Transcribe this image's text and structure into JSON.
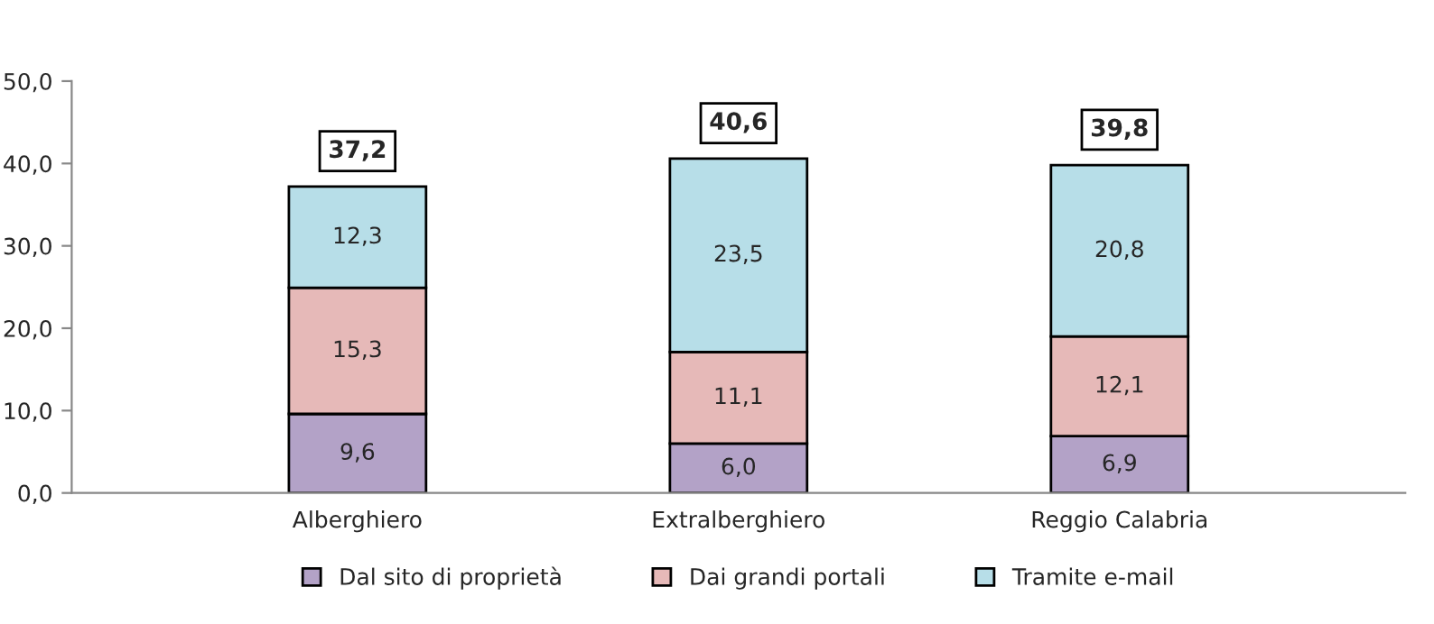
{
  "chart_data": {
    "type": "bar",
    "stacked": true,
    "categories": [
      "Alberghiero",
      "Extralberghiero",
      "Reggio Calabria"
    ],
    "series": [
      {
        "name": "Dal sito di proprietà",
        "color": "#b3a2c7",
        "values": [
          9.6,
          6.0,
          6.9
        ],
        "value_labels": [
          "9,6",
          "6,0",
          "6,9"
        ]
      },
      {
        "name": "Dai grandi portali",
        "color": "#e6b9b8",
        "values": [
          15.3,
          11.1,
          12.1
        ],
        "value_labels": [
          "15,3",
          "11,1",
          "12,1"
        ]
      },
      {
        "name": "Tramite e-mail",
        "color": "#b7dee8",
        "values": [
          12.3,
          23.5,
          20.8
        ],
        "value_labels": [
          "12,3",
          "23,5",
          "20,8"
        ]
      }
    ],
    "totals": [
      "37,2",
      "40,6",
      "39,8"
    ],
    "ylim": [
      0,
      50
    ],
    "yticks": [
      {
        "value": 0,
        "label": "0,0"
      },
      {
        "value": 10,
        "label": "10,0"
      },
      {
        "value": 20,
        "label": "20,0"
      },
      {
        "value": 30,
        "label": "30,0"
      },
      {
        "value": 40,
        "label": "40,0"
      },
      {
        "value": 50,
        "label": "50,0"
      }
    ],
    "grid": false,
    "legend": "bottom"
  }
}
